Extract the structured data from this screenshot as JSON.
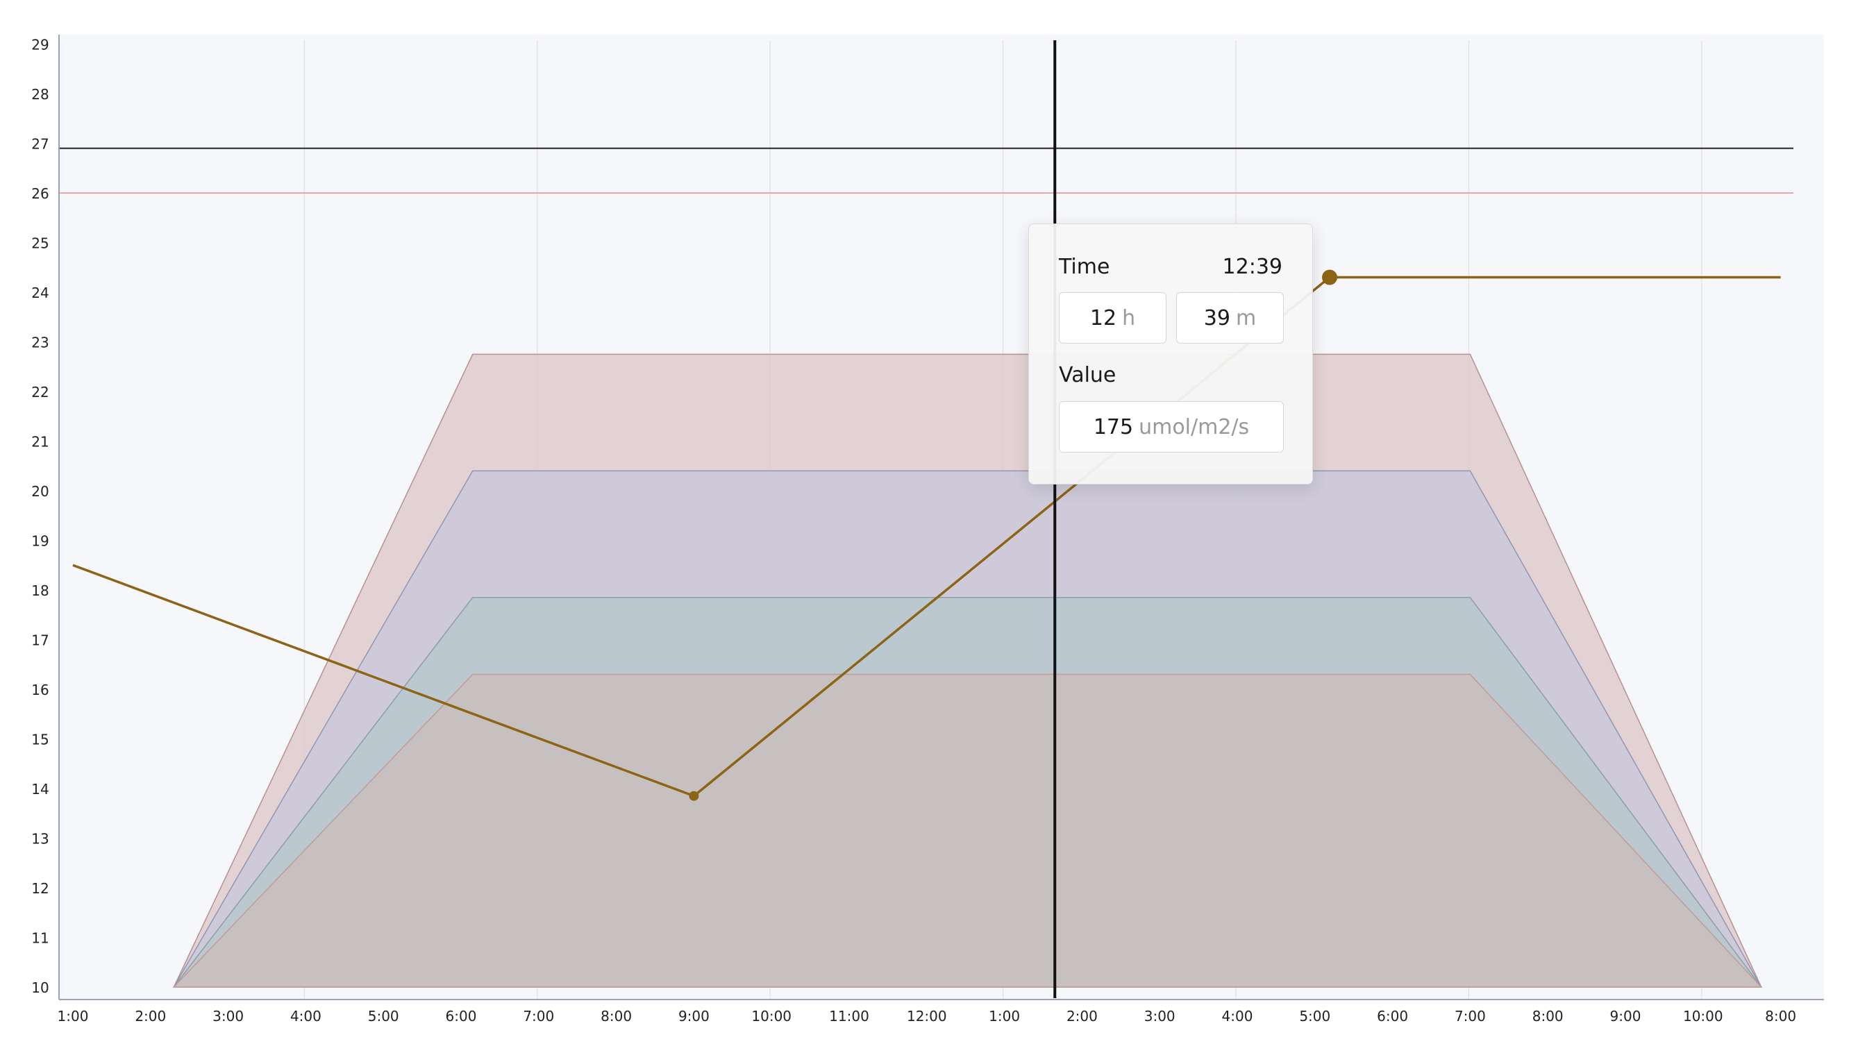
{
  "chart_data": {
    "type": "area",
    "y_ticks": [
      10,
      11,
      12,
      13,
      14,
      15,
      16,
      17,
      18,
      19,
      20,
      21,
      22,
      23,
      24,
      25,
      26,
      27,
      28,
      29
    ],
    "ylim": [
      10,
      29
    ],
    "x_ticks": [
      "1:00",
      "2:00",
      "3:00",
      "4:00",
      "5:00",
      "6:00",
      "7:00",
      "8:00",
      "9:00",
      "10:00",
      "11:00",
      "12:00",
      "1:00",
      "2:00",
      "3:00",
      "4:00",
      "5:00",
      "6:00",
      "7:00",
      "8:00",
      "9:00",
      "10:00",
      "8:00"
    ],
    "grid": "vertical",
    "reference_lines": [
      {
        "y": 26.9,
        "color": "#222222"
      },
      {
        "y": 26.0,
        "color": "#e6a8a8"
      }
    ],
    "bands": [
      {
        "color": "#dcc8c8",
        "stroke": "#b49292",
        "points": [
          [
            2.3,
            10
          ],
          [
            6.15,
            22.75
          ],
          [
            19.0,
            22.75
          ],
          [
            22.75,
            10
          ]
        ]
      },
      {
        "color": "#c8c8dc",
        "stroke": "#9296b0",
        "points": [
          [
            2.3,
            10
          ],
          [
            6.15,
            20.4
          ],
          [
            19.0,
            20.4
          ],
          [
            22.75,
            10
          ]
        ]
      },
      {
        "color": "#b6c8cc",
        "stroke": "#8aa0a4",
        "points": [
          [
            2.3,
            10
          ],
          [
            6.15,
            17.85
          ],
          [
            19.0,
            17.85
          ],
          [
            22.75,
            10
          ]
        ]
      },
      {
        "color": "#cbbebc",
        "stroke": "#c49a96",
        "points": [
          [
            2.3,
            10
          ],
          [
            6.15,
            16.3
          ],
          [
            19.0,
            16.3
          ],
          [
            22.75,
            10
          ]
        ]
      }
    ],
    "series": [
      {
        "color": "#8c6414",
        "points": [
          [
            1.0,
            18.5
          ],
          [
            9.0,
            13.85
          ],
          [
            17.19,
            24.3
          ],
          [
            23.0,
            24.3
          ]
        ],
        "markers": [
          [
            9.0,
            13.85,
            "small"
          ],
          [
            17.19,
            24.3,
            "large"
          ]
        ]
      }
    ],
    "cursor_x": 13.65
  },
  "tooltip": {
    "time_label": "Time",
    "time_value": "12:39",
    "hours_value": "12",
    "hours_unit": "h",
    "minutes_value": "39",
    "minutes_unit": "m",
    "value_label": "Value",
    "value_number": "175",
    "value_unit": "umol/m2/s"
  }
}
